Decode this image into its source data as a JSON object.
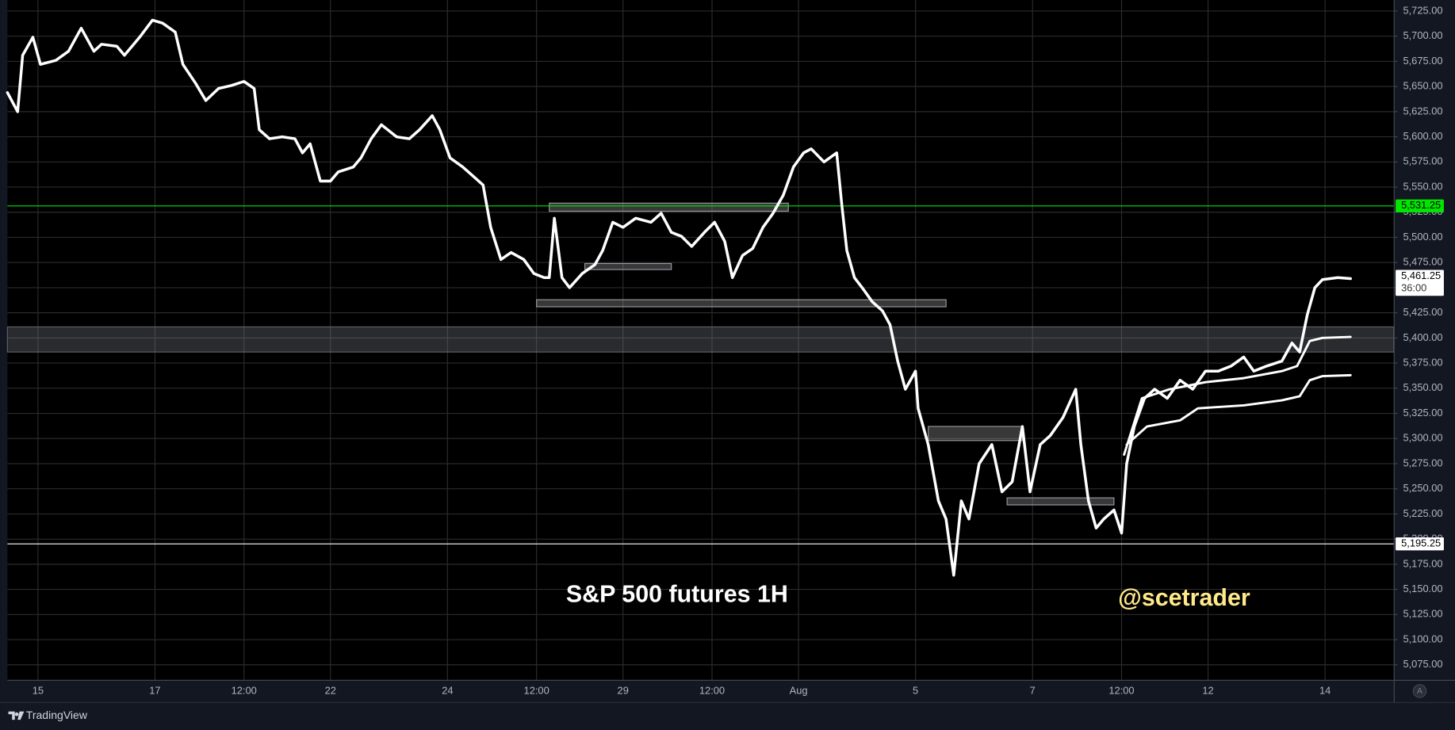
{
  "chart_data": {
    "type": "line",
    "xlim": [
      -12,
      533
    ],
    "ylim": [
      5060,
      5736
    ],
    "grid": true,
    "xticks": [
      {
        "value": 0,
        "label": "15"
      },
      {
        "value": 46,
        "label": "17"
      },
      {
        "value": 81,
        "label": "12:00"
      },
      {
        "value": 115,
        "label": "22"
      },
      {
        "value": 161,
        "label": "24"
      },
      {
        "value": 196,
        "label": "12:00"
      },
      {
        "value": 230,
        "label": "29"
      },
      {
        "value": 265,
        "label": "12:00"
      },
      {
        "value": 299,
        "label": "Aug"
      },
      {
        "value": 345,
        "label": "5"
      },
      {
        "value": 391,
        "label": "7"
      },
      {
        "value": 426,
        "label": "12:00"
      },
      {
        "value": 460,
        "label": "12"
      },
      {
        "value": 506,
        "label": "14"
      }
    ],
    "yticks": [
      {
        "value": 5075,
        "label": "5,075.00"
      },
      {
        "value": 5100,
        "label": "5,100.00"
      },
      {
        "value": 5125,
        "label": "5,125.00"
      },
      {
        "value": 5150,
        "label": "5,150.00"
      },
      {
        "value": 5175,
        "label": "5,175.00"
      },
      {
        "value": 5200,
        "label": "5,200.00"
      },
      {
        "value": 5225,
        "label": "5,225.00"
      },
      {
        "value": 5250,
        "label": "5,250.00"
      },
      {
        "value": 5275,
        "label": "5,275.00"
      },
      {
        "value": 5300,
        "label": "5,300.00"
      },
      {
        "value": 5325,
        "label": "5,325.00"
      },
      {
        "value": 5350,
        "label": "5,350.00"
      },
      {
        "value": 5375,
        "label": "5,375.00"
      },
      {
        "value": 5400,
        "label": "5,400.00"
      },
      {
        "value": 5425,
        "label": "5,425.00"
      },
      {
        "value": 5450,
        "label": "5,450.00"
      },
      {
        "value": 5475,
        "label": "5,475.00"
      },
      {
        "value": 5500,
        "label": "5,500.00"
      },
      {
        "value": 5525,
        "label": "5,525.00"
      },
      {
        "value": 5550,
        "label": "5,550.00"
      },
      {
        "value": 5575,
        "label": "5,575.00"
      },
      {
        "value": 5600,
        "label": "5,600.00"
      },
      {
        "value": 5625,
        "label": "5,625.00"
      },
      {
        "value": 5650,
        "label": "5,650.00"
      },
      {
        "value": 5675,
        "label": "5,675.00"
      },
      {
        "value": 5700,
        "label": "5,700.00"
      },
      {
        "value": 5725,
        "label": "5,725.00"
      }
    ],
    "series": [
      {
        "color": "#ffffff",
        "width": 3,
        "x": [
          -12,
          -8,
          -6,
          -2,
          1,
          7,
          12,
          17,
          22,
          25,
          31,
          34,
          40,
          45,
          49,
          54,
          57,
          62,
          66,
          71,
          76,
          81,
          85,
          87,
          91,
          96,
          101,
          104,
          107,
          111,
          115,
          118,
          124,
          127,
          131,
          135,
          141,
          146,
          150,
          155,
          158,
          162,
          167,
          171,
          175,
          178,
          182,
          186,
          191,
          195,
          199,
          201,
          203,
          206,
          209,
          214,
          219,
          222,
          226,
          230,
          235,
          241,
          245,
          249,
          253,
          257,
          262,
          266,
          270,
          273,
          277,
          281,
          285,
          289,
          293,
          297,
          301,
          304,
          309,
          314,
          316,
          318,
          321,
          324,
          328,
          332,
          335,
          338,
          341,
          345,
          346,
          350,
          354,
          357,
          360,
          363,
          366,
          370,
          375,
          379,
          383,
          387,
          390,
          394,
          398,
          403,
          408,
          410,
          413,
          416,
          419,
          423,
          426,
          428,
          431,
          435,
          439,
          444,
          449,
          454,
          459,
          464,
          469,
          474,
          478,
          483,
          489,
          493,
          496,
          499,
          502,
          505,
          511,
          516
        ],
        "values": [
          5644,
          5625,
          5681,
          5699,
          5672,
          5676,
          5685,
          5708,
          5685,
          5692,
          5690,
          5681,
          5699,
          5716,
          5713,
          5704,
          5672,
          5653,
          5636,
          5648,
          5651,
          5655,
          5648,
          5607,
          5598,
          5600,
          5598,
          5584,
          5593,
          5556,
          5556,
          5565,
          5570,
          5579,
          5598,
          5612,
          5600,
          5598,
          5607,
          5621,
          5607,
          5579,
          5570,
          5561,
          5552,
          5510,
          5478,
          5485,
          5478,
          5464,
          5460,
          5460,
          5519,
          5460,
          5450,
          5464,
          5473,
          5487,
          5515,
          5510,
          5519,
          5515,
          5524,
          5505,
          5501,
          5491,
          5505,
          5515,
          5496,
          5460,
          5482,
          5489,
          5510,
          5524,
          5542,
          5570,
          5584,
          5588,
          5575,
          5584,
          5533,
          5487,
          5460,
          5450,
          5436,
          5427,
          5413,
          5377,
          5349,
          5367,
          5330,
          5294,
          5238,
          5220,
          5164,
          5238,
          5220,
          5275,
          5294,
          5247,
          5257,
          5312,
          5247,
          5294,
          5303,
          5321,
          5349,
          5294,
          5238,
          5211,
          5220,
          5229,
          5206,
          5275,
          5312,
          5340,
          5349,
          5340,
          5358,
          5349,
          5367,
          5367,
          5372,
          5381,
          5367,
          5372,
          5377,
          5395,
          5386,
          5423,
          5450,
          5458,
          5460,
          5459
        ]
      },
      {
        "color": "#ffffff",
        "width": 2.5,
        "x": [
          427,
          434,
          445,
          459,
          474,
          489,
          495,
          500,
          505,
          516
        ],
        "values": [
          5284,
          5340,
          5349,
          5356,
          5360,
          5367,
          5372,
          5397,
          5400,
          5401
        ]
      },
      {
        "color": "#ffffff",
        "width": 2.5,
        "x": [
          428,
          436,
          449,
          456,
          474,
          489,
          496,
          500,
          505,
          516
        ],
        "values": [
          5294,
          5312,
          5318,
          5330,
          5333,
          5338,
          5342,
          5358,
          5362,
          5363
        ]
      }
    ],
    "band": [
      5386,
      5411
    ],
    "zones": [
      {
        "x": [
          201,
          295
        ],
        "y": [
          5526,
          5534
        ]
      },
      {
        "x": [
          215,
          249
        ],
        "y": [
          5468,
          5474
        ]
      },
      {
        "x": [
          196,
          357
        ],
        "y": [
          5431,
          5438
        ]
      },
      {
        "x": [
          350,
          387
        ],
        "y": [
          5298,
          5312
        ]
      },
      {
        "x": [
          381,
          423
        ],
        "y": [
          5234,
          5241
        ]
      }
    ],
    "price_markers": [
      {
        "value": 5531.25,
        "label": "5,531.25",
        "color": "#00e600",
        "line": true
      },
      {
        "value": 5461.25,
        "label": "5,461.25",
        "color": "#ffffff",
        "line": false,
        "countdown": "36:00"
      },
      {
        "value": 5195.25,
        "label": "5,195.25",
        "color": "#ffffff",
        "line": true
      }
    ],
    "annotations": [
      {
        "text": "S&P 500 futures 1H",
        "color": "#ffffff"
      },
      {
        "text": "@scetrader",
        "color": "#ffe98a"
      }
    ],
    "footer": "TradingView",
    "auto_scale_button": "A"
  }
}
